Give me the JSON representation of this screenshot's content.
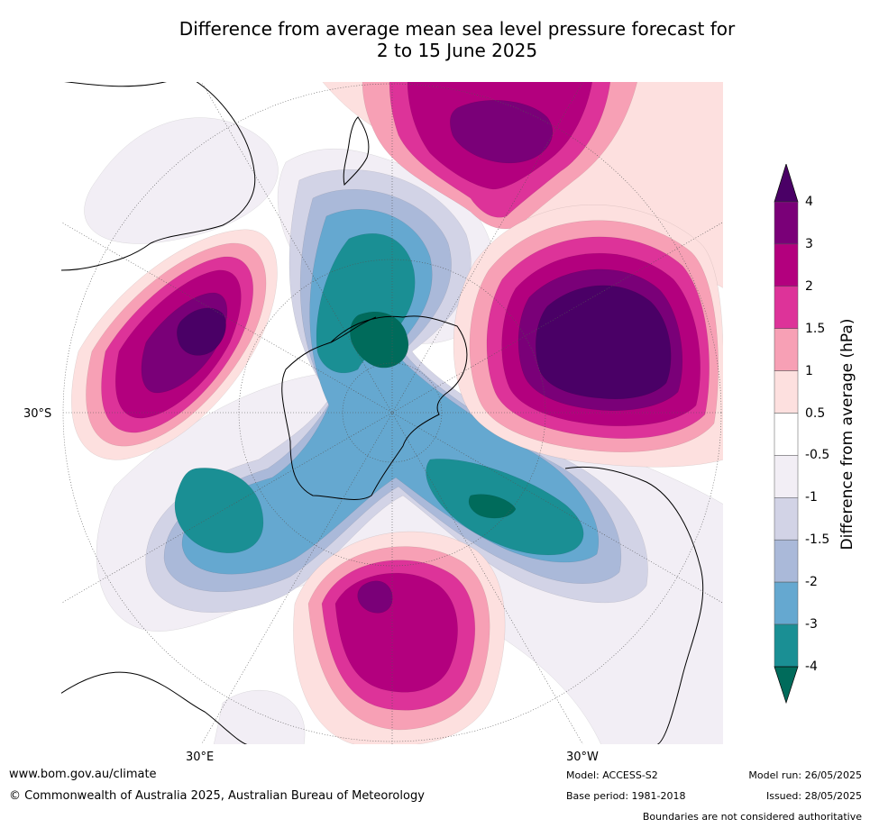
{
  "title_line1": "Difference from average mean sea level pressure forecast for",
  "title_line2": "2 to 15 June 2025",
  "map": {
    "lon_labels": [
      "30°E",
      "30°W"
    ],
    "lat_label": "30°S"
  },
  "colorbar": {
    "title": "Difference from average (hPa)",
    "tick_labels": [
      "4",
      "3",
      "2",
      "1.5",
      "1",
      "0.5",
      "-0.5",
      "-1",
      "-1.5",
      "-2",
      "-3",
      "-4"
    ],
    "colors": {
      "gt4": "#4a0066",
      "3to4": "#7a0078",
      "2to3": "#b3007e",
      "1.5to2": "#dd3399",
      "1to1.5": "#f7a0b5",
      "0.5to1": "#fde0df",
      "neutral": "#ffffff",
      "-1to-0.5": "#f2eef5",
      "-1.5to-1": "#d2d3e6",
      "-2to-1.5": "#aab9d9",
      "-3to-2": "#65a8d0",
      "-4to-3": "#1a8f94",
      "lt-4": "#006b5b"
    }
  },
  "footer": {
    "website": "www.bom.gov.au/climate",
    "copyright": "© Commonwealth of Australia 2025, Australian Bureau of Meteorology",
    "model": "Model: ACCESS-S2",
    "base_period": "Base period: 1981-2018",
    "model_run": "Model run: 26/05/2025",
    "issued": "Issued: 28/05/2025",
    "disclaimer": "Boundaries are not considered authoritative"
  }
}
